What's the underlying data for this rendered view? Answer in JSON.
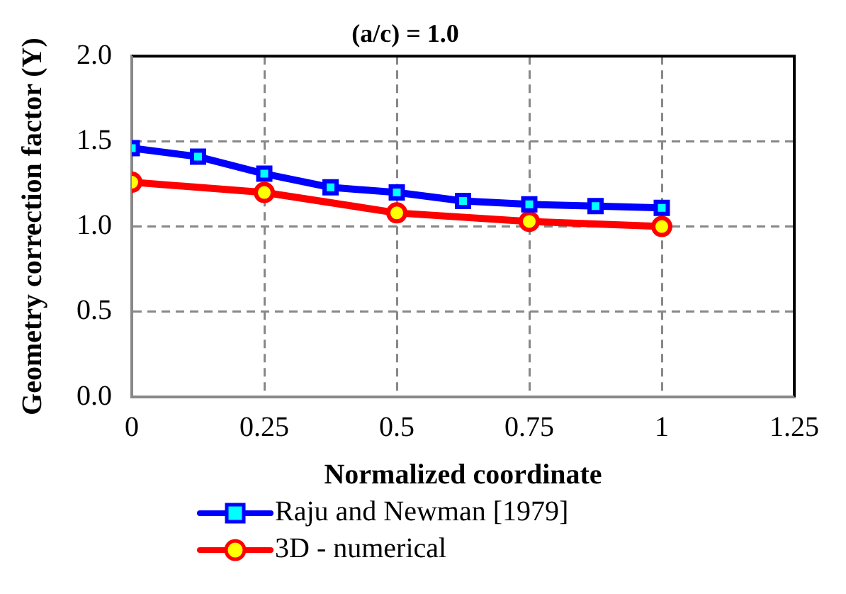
{
  "chart_data": {
    "type": "line",
    "title": "(a/c) = 1.0",
    "xlabel": "Normalized coordinate",
    "ylabel": "Geometry correction factor (Y)",
    "xlim": [
      0,
      1.25
    ],
    "xticks": [
      0,
      0.25,
      0.5,
      0.75,
      1,
      1.25
    ],
    "ylim": [
      0,
      2
    ],
    "yticks": [
      {
        "value": 0,
        "label": "0.0"
      },
      {
        "value": 0.5,
        "label": "0.5"
      },
      {
        "value": 1,
        "label": "1.0"
      },
      {
        "value": 1.5,
        "label": "1.5"
      },
      {
        "value": 2,
        "label": "2.0"
      }
    ],
    "grid": true,
    "legend": "bottom",
    "line_style": "solid",
    "series": [
      {
        "name": "Raju and Newman [1979]",
        "color": "#0000ff",
        "marker": "square",
        "x": [
          0,
          0.125,
          0.25,
          0.375,
          0.5,
          0.625,
          0.75,
          0.875,
          1
        ],
        "values": [
          1.46,
          1.41,
          1.31,
          1.23,
          1.2,
          1.15,
          1.13,
          1.12,
          1.11
        ]
      },
      {
        "name": "3D - numerical",
        "color": "#ff0000",
        "marker": "circle",
        "x": [
          0,
          0.25,
          0.5,
          0.75,
          1
        ],
        "values": [
          1.26,
          1.2,
          1.08,
          1.03,
          1.0
        ]
      }
    ]
  }
}
